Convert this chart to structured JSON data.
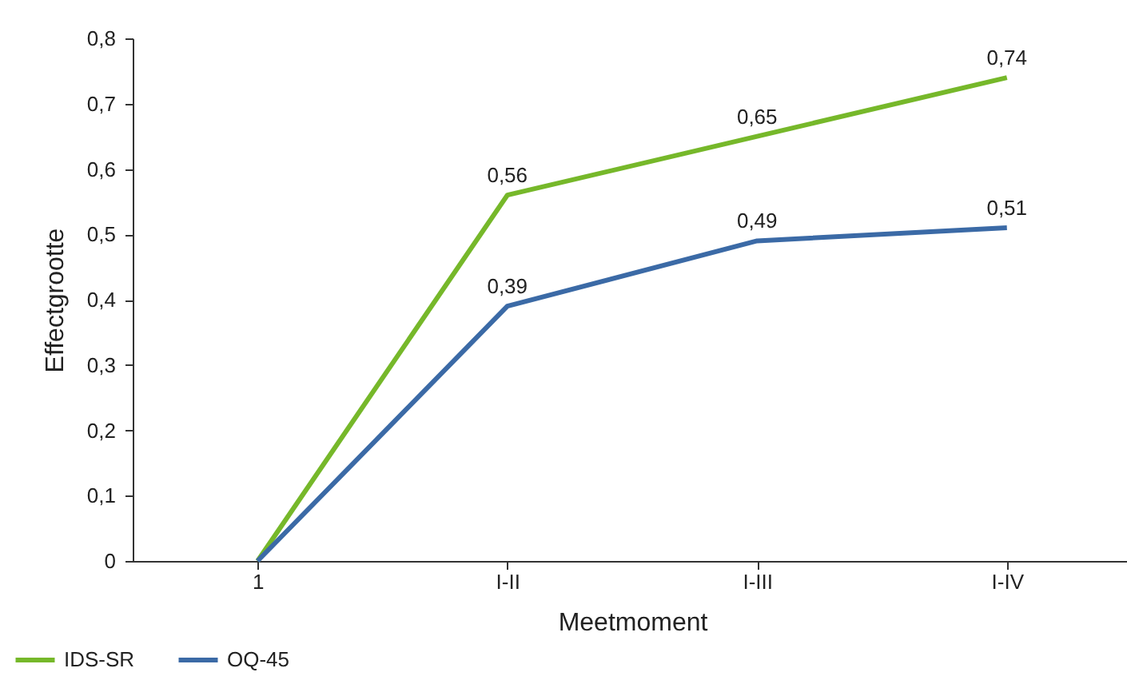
{
  "chart_data": {
    "type": "line",
    "xlabel": "Meetmoment",
    "ylabel": "Effectgrootte",
    "categories": [
      "1",
      "I-II",
      "I-III",
      "I-IV"
    ],
    "series": [
      {
        "name": "IDS-SR",
        "color": "#76b82a",
        "values": [
          0,
          0.56,
          0.65,
          0.74
        ],
        "value_labels": [
          null,
          "0,56",
          "0,65",
          "0,74"
        ]
      },
      {
        "name": "OQ-45",
        "color": "#3b6aa6",
        "values": [
          0,
          0.39,
          0.49,
          0.51
        ],
        "value_labels": [
          null,
          "0,39",
          "0,49",
          "0,51"
        ]
      }
    ],
    "ylim": [
      0,
      0.8
    ],
    "yticks": [
      0,
      {
        "value": 0.1,
        "label": "0,1"
      },
      {
        "value": 0.2,
        "label": "0,2"
      },
      {
        "value": 0.3,
        "label": "0,3"
      },
      {
        "value": 0.4,
        "label": "0,4"
      },
      {
        "value": 0.5,
        "label": "0,5"
      },
      {
        "value": 0.6,
        "label": "0,6"
      },
      {
        "value": 0.7,
        "label": "0,7"
      },
      {
        "value": 0.8,
        "label": "0,8"
      }
    ],
    "grid": false,
    "legend": "bottom left",
    "marker": "none",
    "line_style": "solid"
  }
}
